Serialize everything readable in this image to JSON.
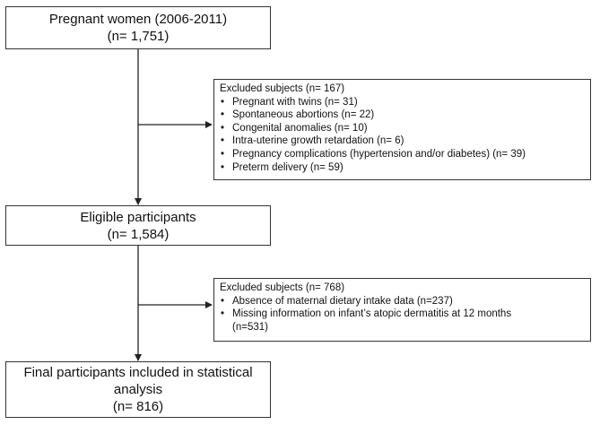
{
  "flowchart": {
    "step1": {
      "line1": "Pregnant women (2006-2011)",
      "line2": "(n= 1,751)"
    },
    "exclusion1": {
      "heading": "Excluded subjects (n= 167)",
      "items": [
        "Pregnant with twins (n= 31)",
        "Spontaneous abortions (n= 22)",
        "Congenital anomalies (n= 10)",
        "Intra-uterine growth retardation (n= 6)",
        "Pregnancy complications (hypertension and/or diabetes) (n= 39)",
        "Preterm delivery (n= 59)"
      ]
    },
    "step2": {
      "line1": "Eligible participants",
      "line2": "(n= 1,584)"
    },
    "exclusion2": {
      "heading": "Excluded subjects (n= 768)",
      "items": [
        "Absence of maternal dietary intake data (n=237)",
        "Missing information on infant’s atopic dermatitis at 12 months (n=531)"
      ]
    },
    "step3": {
      "line1": "Final participants included in statistical",
      "line2": "analysis",
      "line3": "(n= 816)"
    }
  },
  "colors": {
    "border": "#333333",
    "arrow": "#222222"
  }
}
